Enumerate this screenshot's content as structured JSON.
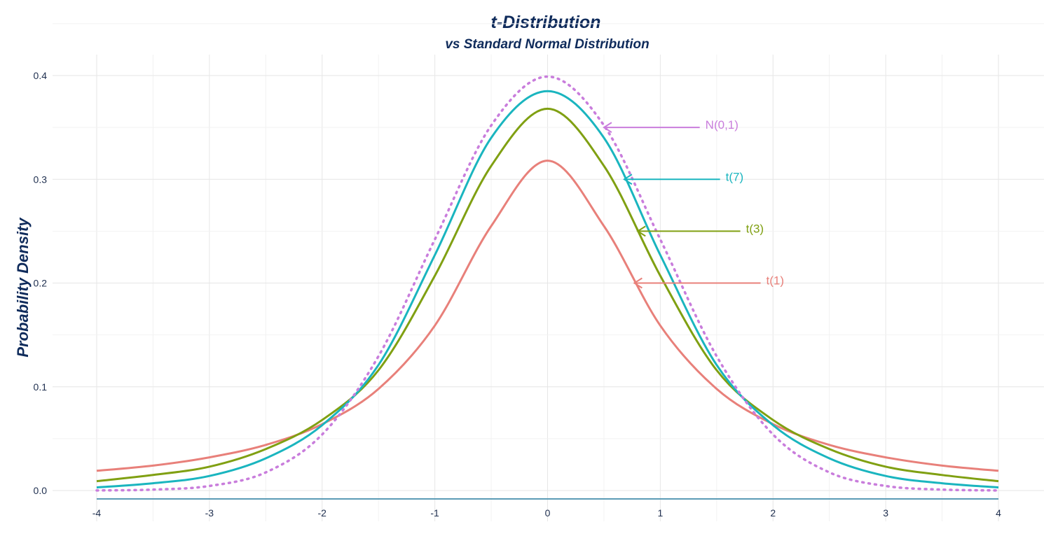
{
  "chart_data": {
    "type": "line",
    "title": "t-Distribution",
    "subtitle": "vs Standard Normal Distribution",
    "ylabel": "Probability Density",
    "xlabel": "",
    "xlim": [
      -4,
      4
    ],
    "ylim": [
      0,
      0.4
    ],
    "x_ticks": [
      "-4",
      "-3",
      "-2",
      "-1",
      "0",
      "1",
      "2",
      "3",
      "4"
    ],
    "y_ticks": [
      "0.0",
      "0.1",
      "0.2",
      "0.3",
      "0.4"
    ],
    "grid": true,
    "legend": "none",
    "x": [
      -4,
      -3.5,
      -3,
      -2.5,
      -2,
      -1.5,
      -1,
      -0.5,
      0,
      0.5,
      1,
      1.5,
      2,
      2.5,
      3,
      3.5,
      4
    ],
    "series": [
      {
        "name": "t(1)",
        "color": "#e8807a",
        "dash": "solid",
        "values": [
          0.019,
          0.024,
          0.032,
          0.044,
          0.064,
          0.098,
          0.159,
          0.255,
          0.318,
          0.255,
          0.159,
          0.098,
          0.064,
          0.044,
          0.032,
          0.024,
          0.019
        ]
      },
      {
        "name": "t(3)",
        "color": "#80a012",
        "dash": "solid",
        "values": [
          0.009,
          0.015,
          0.023,
          0.04,
          0.068,
          0.116,
          0.207,
          0.313,
          0.368,
          0.313,
          0.207,
          0.116,
          0.068,
          0.04,
          0.023,
          0.015,
          0.009
        ]
      },
      {
        "name": "t(7)",
        "color": "#1ab5bf",
        "dash": "solid",
        "values": [
          0.003,
          0.007,
          0.014,
          0.031,
          0.063,
          0.121,
          0.227,
          0.34,
          0.385,
          0.34,
          0.227,
          0.121,
          0.063,
          0.031,
          0.014,
          0.007,
          0.003
        ]
      },
      {
        "name": "N(0,1)",
        "color": "#c97ddc",
        "dash": "dotted",
        "values": [
          0.0001,
          0.0009,
          0.0044,
          0.0175,
          0.054,
          0.1295,
          0.242,
          0.352,
          0.399,
          0.352,
          0.242,
          0.1295,
          0.054,
          0.0175,
          0.0044,
          0.0009,
          0.0001
        ]
      }
    ],
    "annotations": [
      {
        "label": "N(0,1)",
        "color": "#c97ddc",
        "x_from": 1.35,
        "x_to": 0.5,
        "y": 0.35
      },
      {
        "label": "t(7)",
        "color": "#1ab5bf",
        "x_from": 1.53,
        "x_to": 0.68,
        "y": 0.3
      },
      {
        "label": "t(3)",
        "color": "#80a012",
        "x_from": 1.71,
        "x_to": 0.8,
        "y": 0.25
      },
      {
        "label": "t(1)",
        "color": "#e8807a",
        "x_from": 1.89,
        "x_to": 0.77,
        "y": 0.2
      }
    ]
  }
}
